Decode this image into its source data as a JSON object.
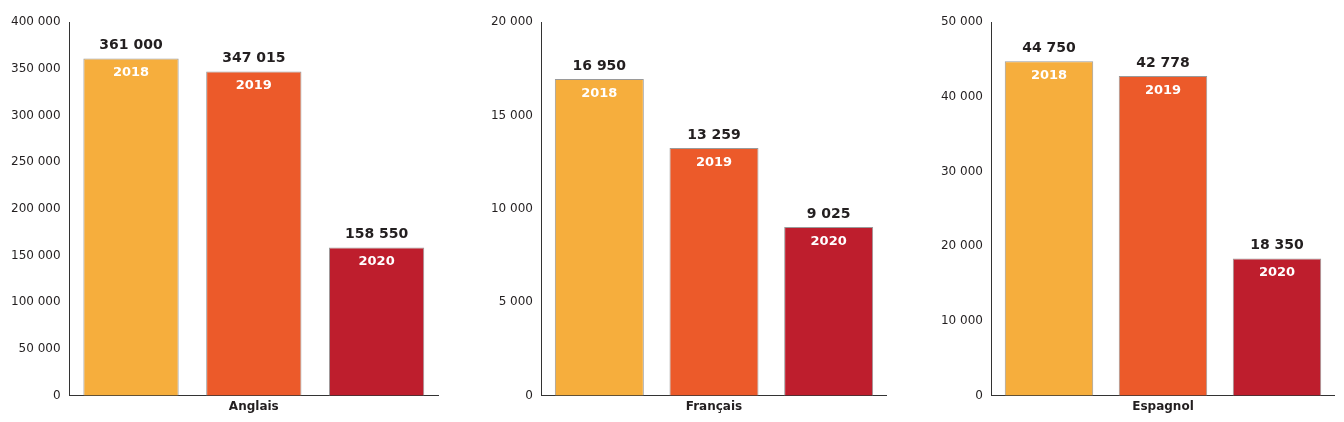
{
  "chart_data": [
    {
      "type": "bar",
      "xlabel": "Anglais",
      "categories": [
        "2018",
        "2019",
        "2020"
      ],
      "values": [
        361000,
        347015,
        158550
      ],
      "colors": [
        "#f6ae3d",
        "#ec5a2a",
        "#be1e2d"
      ],
      "value_labels": [
        "361 000",
        "347 015",
        "158 550"
      ],
      "ylim": [
        0,
        400000
      ],
      "yticks": [
        {
          "value": 0,
          "label": "0"
        },
        {
          "value": 50000,
          "label": "50 000"
        },
        {
          "value": 100000,
          "label": "100 000"
        },
        {
          "value": 150000,
          "label": "150 000"
        },
        {
          "value": 200000,
          "label": "200 000"
        },
        {
          "value": 250000,
          "label": "250 000"
        },
        {
          "value": 300000,
          "label": "300 000"
        },
        {
          "value": 350000,
          "label": "350 000"
        },
        {
          "value": 400000,
          "label": "400 000"
        }
      ],
      "grid": false
    },
    {
      "type": "bar",
      "xlabel": "Français",
      "categories": [
        "2018",
        "2019",
        "2020"
      ],
      "values": [
        16950,
        13259,
        9025
      ],
      "colors": [
        "#f6ae3d",
        "#ec5a2a",
        "#be1e2d"
      ],
      "value_labels": [
        "16 950",
        "13 259",
        "9 025"
      ],
      "ylim": [
        0,
        20000
      ],
      "yticks": [
        {
          "value": 0,
          "label": "0"
        },
        {
          "value": 5000,
          "label": "5 000"
        },
        {
          "value": 10000,
          "label": "10 000"
        },
        {
          "value": 15000,
          "label": "15 000"
        },
        {
          "value": 20000,
          "label": "20 000"
        }
      ],
      "grid": false
    },
    {
      "type": "bar",
      "xlabel": "Espagnol",
      "categories": [
        "2018",
        "2019",
        "2020"
      ],
      "values": [
        44750,
        42778,
        18350
      ],
      "colors": [
        "#f6ae3d",
        "#ec5a2a",
        "#be1e2d"
      ],
      "value_labels": [
        "44 750",
        "42 778",
        "18 350"
      ],
      "ylim": [
        0,
        50000
      ],
      "yticks": [
        {
          "value": 0,
          "label": "0"
        },
        {
          "value": 10000,
          "label": "10 000"
        },
        {
          "value": 20000,
          "label": "20 000"
        },
        {
          "value": 30000,
          "label": "30 000"
        },
        {
          "value": 40000,
          "label": "40 000"
        },
        {
          "value": 50000,
          "label": "50 000"
        }
      ],
      "grid": false
    }
  ]
}
